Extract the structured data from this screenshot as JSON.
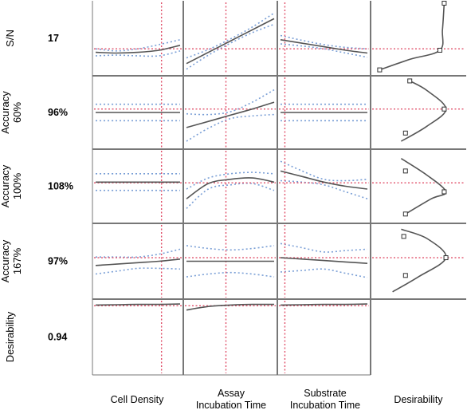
{
  "chart_data": {
    "type": "line",
    "title": "",
    "chart_kind": "prediction profiler",
    "factors": [
      {
        "label_lines": [
          "Cell Density"
        ]
      },
      {
        "label_lines": [
          "Assay",
          "Incubation Time"
        ]
      },
      {
        "label_lines": [
          "Substrate",
          "Incubation Time"
        ]
      }
    ],
    "desirability_label": "Desirability",
    "responses": [
      {
        "label_lines": [
          "S/N"
        ],
        "value": "17"
      },
      {
        "label_lines": [
          "Accuracy",
          "60%"
        ],
        "value": "96%"
      },
      {
        "label_lines": [
          "Accuracy",
          "100%"
        ],
        "value": "108%"
      },
      {
        "label_lines": [
          "Accuracy",
          "167%"
        ],
        "value": "97%"
      },
      {
        "label_lines": [
          "Desirability"
        ],
        "value": "0.94"
      }
    ],
    "x_domain": [
      0,
      1
    ],
    "y_domain": [
      0,
      1
    ],
    "current_factor_settings": [
      0.78,
      0.45,
      0.05
    ],
    "current_response_levels": [
      0.35,
      0.55,
      0.55,
      0.55,
      0.94
    ],
    "profiles": [
      [
        {
          "mean": [
            0.3,
            0.29,
            0.3,
            0.33,
            0.4
          ],
          "band": [
            0.05,
            0.03,
            0.05,
            0.08,
            0.08
          ]
        },
        {
          "mean": [
            0.14,
            0.3,
            0.46,
            0.62,
            0.78
          ],
          "band": [
            0.08,
            0.04,
            0.03,
            0.04,
            0.08
          ]
        },
        {
          "mean": [
            0.48,
            0.43,
            0.38,
            0.33,
            0.29
          ],
          "band": [
            0.06,
            0.04,
            0.03,
            0.04,
            0.06
          ]
        }
      ],
      [
        {
          "mean": [
            0.5,
            0.5,
            0.5,
            0.5,
            0.5
          ],
          "band": [
            0.12,
            0.12,
            0.12,
            0.12,
            0.12
          ]
        },
        {
          "mean": [
            0.28,
            0.37,
            0.46,
            0.55,
            0.65
          ],
          "band": [
            0.2,
            0.1,
            0.05,
            0.1,
            0.18
          ]
        },
        {
          "mean": [
            0.5,
            0.5,
            0.5,
            0.5,
            0.5
          ],
          "band": [
            0.12,
            0.12,
            0.12,
            0.12,
            0.12
          ]
        }
      ],
      [
        {
          "mean": [
            0.56,
            0.56,
            0.56,
            0.56,
            0.56
          ],
          "band": [
            0.12,
            0.12,
            0.12,
            0.12,
            0.12
          ]
        },
        {
          "mean": [
            0.32,
            0.54,
            0.6,
            0.62,
            0.56
          ],
          "band": [
            0.14,
            0.08,
            0.08,
            0.08,
            0.12
          ]
        },
        {
          "mean": [
            0.72,
            0.64,
            0.56,
            0.5,
            0.46
          ],
          "band": [
            0.14,
            0.08,
            0.04,
            0.08,
            0.14
          ]
        }
      ],
      [
        {
          "mean": [
            0.44,
            0.46,
            0.48,
            0.5,
            0.53
          ],
          "band": [
            0.12,
            0.1,
            0.08,
            0.1,
            0.14
          ]
        },
        {
          "mean": [
            0.5,
            0.5,
            0.5,
            0.5,
            0.5
          ],
          "band": [
            0.22,
            0.18,
            0.16,
            0.18,
            0.22
          ]
        },
        {
          "mean": [
            0.55,
            0.53,
            0.51,
            0.49,
            0.47
          ],
          "band": [
            0.2,
            0.16,
            0.12,
            0.16,
            0.2
          ]
        }
      ],
      [
        {
          "mean": [
            0.95,
            0.955,
            0.96,
            0.96,
            0.965
          ],
          "band": [
            0,
            0,
            0,
            0,
            0
          ]
        },
        {
          "mean": [
            0.88,
            0.93,
            0.95,
            0.96,
            0.96
          ],
          "band": [
            0,
            0,
            0,
            0,
            0
          ]
        },
        {
          "mean": [
            0.95,
            0.955,
            0.96,
            0.96,
            0.965
          ],
          "band": [
            0,
            0,
            0,
            0,
            0
          ]
        }
      ]
    ],
    "desirability_functions": [
      {
        "curve": [
          [
            0.05,
            0.05
          ],
          [
            0.4,
            0.2
          ],
          [
            0.75,
            0.33
          ],
          [
            0.78,
            0.62
          ],
          [
            0.8,
            1.0
          ]
        ],
        "markers": [
          [
            0.05,
            0.05
          ],
          [
            0.75,
            0.33
          ],
          [
            0.8,
            1.0
          ]
        ]
      },
      {
        "curve": [
          [
            0.3,
            0.08
          ],
          [
            0.6,
            0.3
          ],
          [
            0.82,
            0.55
          ],
          [
            0.6,
            0.82
          ],
          [
            0.4,
            0.96
          ]
        ],
        "markers": [
          [
            0.35,
            0.2
          ],
          [
            0.8,
            0.55
          ],
          [
            0.4,
            0.96
          ]
        ]
      },
      {
        "curve": [
          [
            0.35,
            0.1
          ],
          [
            0.65,
            0.32
          ],
          [
            0.82,
            0.42
          ],
          [
            0.6,
            0.66
          ],
          [
            0.3,
            0.9
          ]
        ],
        "markers": [
          [
            0.35,
            0.1
          ],
          [
            0.8,
            0.42
          ],
          [
            0.35,
            0.72
          ]
        ]
      },
      {
        "curve": [
          [
            0.2,
            0.07
          ],
          [
            0.5,
            0.28
          ],
          [
            0.82,
            0.55
          ],
          [
            0.6,
            0.82
          ],
          [
            0.3,
            0.95
          ]
        ],
        "markers": [
          [
            0.35,
            0.3
          ],
          [
            0.82,
            0.55
          ],
          [
            0.33,
            0.85
          ]
        ]
      }
    ],
    "colors": {
      "prediction": "#555555",
      "confidence_band": "#7a9fd6",
      "crosshair": "#e0506a",
      "frame": "#777777"
    }
  }
}
